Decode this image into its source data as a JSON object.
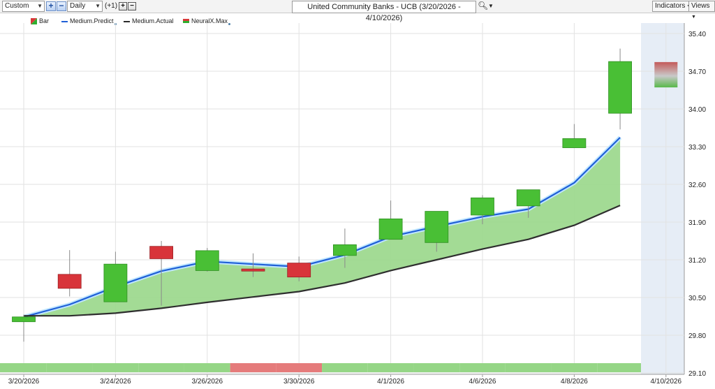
{
  "toolbar": {
    "range_select": "Custom",
    "interval_select": "Daily",
    "offset_label": "(+1)",
    "title": "United Community Banks - UCB (3/20/2026 - 4/10/2026)",
    "indicators_label": "Indicators",
    "views_label": "Views"
  },
  "legend": [
    {
      "label": "Bar"
    },
    {
      "label": "Medium.Predict",
      "color": "#1f5fd6"
    },
    {
      "label": "Medium.Actual",
      "color": "#2b2b2b"
    },
    {
      "label": "NeuralX.Max"
    }
  ],
  "chart_data": {
    "type": "candlestick",
    "title": "United Community Banks - UCB (3/20/2026 - 4/10/2026)",
    "ylim": [
      29.1,
      35.4
    ],
    "y_ticks": [
      "35.40",
      "34.70",
      "34.00",
      "33.30",
      "32.60",
      "31.90",
      "31.20",
      "30.50",
      "29.80",
      "29.10"
    ],
    "x_ticks": [
      {
        "label": "3/20/2026",
        "index": 0
      },
      {
        "label": "3/24/2026",
        "index": 2
      },
      {
        "label": "3/26/2026",
        "index": 4
      },
      {
        "label": "3/30/2026",
        "index": 6
      },
      {
        "label": "4/1/2026",
        "index": 8
      },
      {
        "label": "4/6/2026",
        "index": 10
      },
      {
        "label": "4/8/2026",
        "index": 12
      },
      {
        "label": "4/10/2026",
        "index": 14
      }
    ],
    "candles": [
      {
        "date": "3/20/2026",
        "open": 30.05,
        "close": 30.14,
        "high": 30.18,
        "low": 29.68
      },
      {
        "date": "3/23/2026",
        "open": 30.93,
        "close": 30.67,
        "high": 31.38,
        "low": 30.52
      },
      {
        "date": "3/24/2026",
        "open": 30.42,
        "close": 31.12,
        "high": 31.35,
        "low": 30.42
      },
      {
        "date": "3/25/2026",
        "open": 31.45,
        "close": 31.22,
        "high": 31.55,
        "low": 30.35
      },
      {
        "date": "3/26/2026",
        "open": 31.0,
        "close": 31.37,
        "high": 31.42,
        "low": 30.98
      },
      {
        "date": "3/27/2026",
        "open": 31.03,
        "close": 30.99,
        "high": 31.32,
        "low": 30.88
      },
      {
        "date": "3/30/2026",
        "open": 31.14,
        "close": 30.88,
        "high": 31.26,
        "low": 30.8
      },
      {
        "date": "3/31/2026",
        "open": 31.28,
        "close": 31.48,
        "high": 31.78,
        "low": 31.05
      },
      {
        "date": "4/1/2026",
        "open": 31.58,
        "close": 31.96,
        "high": 32.3,
        "low": 31.58
      },
      {
        "date": "4/2/2026",
        "open": 31.52,
        "close": 32.1,
        "high": 32.1,
        "low": 31.35
      },
      {
        "date": "4/6/2026",
        "open": 32.03,
        "close": 32.35,
        "high": 32.4,
        "low": 31.86
      },
      {
        "date": "4/7/2026",
        "open": 32.2,
        "close": 32.5,
        "high": 32.5,
        "low": 31.98
      },
      {
        "date": "4/8/2026",
        "open": 33.28,
        "close": 33.45,
        "high": 33.72,
        "low": 33.28
      },
      {
        "date": "4/9/2026",
        "open": 33.92,
        "close": 34.88,
        "high": 35.12,
        "low": 33.62
      }
    ],
    "forecast": {
      "date": "4/10/2026",
      "high": 34.87,
      "low": 34.4
    },
    "series": [
      {
        "name": "Medium.Predict",
        "values": [
          30.14,
          30.37,
          30.7,
          30.99,
          31.17,
          31.12,
          31.07,
          31.29,
          31.63,
          31.82,
          32.0,
          32.14,
          32.63,
          33.47
        ]
      },
      {
        "name": "Medium.Actual",
        "values": [
          30.16,
          30.16,
          30.21,
          30.3,
          30.41,
          30.51,
          30.61,
          30.77,
          31.0,
          31.2,
          31.4,
          31.58,
          31.84,
          32.21
        ]
      }
    ],
    "signal_strip": [
      "green",
      "green",
      "green",
      "green",
      "green",
      "red",
      "red",
      "green",
      "green",
      "green",
      "green",
      "green",
      "green",
      "green"
    ]
  }
}
